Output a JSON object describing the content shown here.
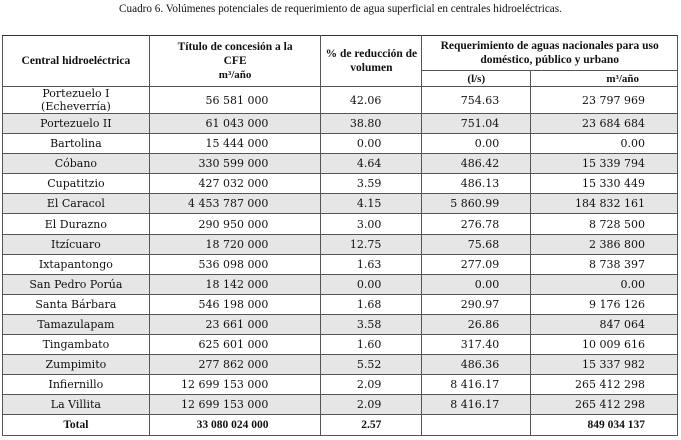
{
  "caption": "Cuadro 6. Volúmenes potenciales de requerimiento de agua superficial en centrales hidroeléctricas.",
  "headers": {
    "central": "Central hidroeléctrica",
    "titulo_line1": "Título de concesión a la",
    "titulo_line2": "CFE",
    "titulo_unit": "m³/año",
    "reduccion": "% de reducción de volumen",
    "requerimiento": "Requerimiento de aguas nacionales para uso doméstico, público y urbano",
    "unit_ls": "(l/s)",
    "unit_m3": "m³/año"
  },
  "rows": [
    {
      "name": "Portezuelo I (Echeverría)",
      "titulo": "56 581 000",
      "pct": "42.06",
      "ls": "754.63",
      "m3": "23 797 969"
    },
    {
      "name": "Portezuelo II",
      "titulo": "61 043 000",
      "pct": "38.80",
      "ls": "751.04",
      "m3": "23 684 684"
    },
    {
      "name": "Bartolina",
      "titulo": "15 444 000",
      "pct": "0.00",
      "ls": "0.00",
      "m3": "0.00"
    },
    {
      "name": "Cóbano",
      "titulo": "330 599 000",
      "pct": "4.64",
      "ls": "486.42",
      "m3": "15 339 794"
    },
    {
      "name": "Cupatitzio",
      "titulo": "427 032 000",
      "pct": "3.59",
      "ls": "486.13",
      "m3": "15 330 449"
    },
    {
      "name": "El Caracol",
      "titulo": "4 453 787 000",
      "pct": "4.15",
      "ls": "5 860.99",
      "m3": "184 832 161"
    },
    {
      "name": "El Durazno",
      "titulo": "290 950 000",
      "pct": "3.00",
      "ls": "276.78",
      "m3": "8 728 500"
    },
    {
      "name": "Itzícuaro",
      "titulo": "18 720 000",
      "pct": "12.75",
      "ls": "75.68",
      "m3": "2 386 800"
    },
    {
      "name": "Ixtapantongo",
      "titulo": "536 098 000",
      "pct": "1.63",
      "ls": "277.09",
      "m3": "8 738 397"
    },
    {
      "name": "San Pedro Porúa",
      "titulo": "18 142 000",
      "pct": "0.00",
      "ls": "0.00",
      "m3": "0.00"
    },
    {
      "name": "Santa Bárbara",
      "titulo": "546 198 000",
      "pct": "1.68",
      "ls": "290.97",
      "m3": "9 176 126"
    },
    {
      "name": "Tamazulapam",
      "titulo": "23 661 000",
      "pct": "3.58",
      "ls": "26.86",
      "m3": "847 064"
    },
    {
      "name": "Tingambato",
      "titulo": "625 601 000",
      "pct": "1.60",
      "ls": "317.40",
      "m3": "10 009 616"
    },
    {
      "name": "Zumpimito",
      "titulo": "277 862 000",
      "pct": "5.52",
      "ls": "486.36",
      "m3": "15 337 982"
    },
    {
      "name": "Infiernillo",
      "titulo": "12 699 153 000",
      "pct": "2.09",
      "ls": "8 416.17",
      "m3": "265 412 298"
    },
    {
      "name": "La Villita",
      "titulo": "12 699 153 000",
      "pct": "2.09",
      "ls": "8 416.17",
      "m3": "265 412 298"
    }
  ],
  "total": {
    "label": "Total",
    "titulo": "33 080 024 000",
    "pct": "2.57",
    "ls": "",
    "m3": "849 034 137"
  }
}
